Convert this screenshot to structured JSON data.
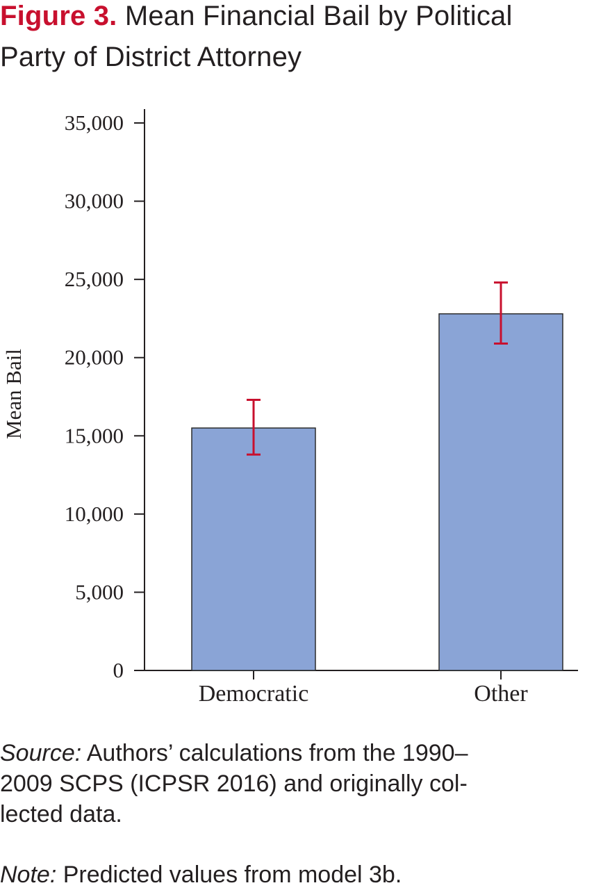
{
  "title": {
    "label": "Figure 3.",
    "text_line1": "Mean Financial Bail by Political",
    "text_line2": "Party of District Attorney"
  },
  "colors": {
    "accent": "#c8102e",
    "bar_fill": "#8aa4d6",
    "bar_stroke": "#2b2b2b",
    "error_bar": "#c8102e",
    "axis": "#231f20"
  },
  "chart_data": {
    "type": "bar",
    "title": "Mean Financial Bail by Political Party of District Attorney",
    "xlabel": "",
    "ylabel": "Mean Bail",
    "categories": [
      "Democratic",
      "Other"
    ],
    "values": [
      15500,
      22800
    ],
    "error_low": [
      13800,
      20900
    ],
    "error_high": [
      17300,
      24800
    ],
    "ylim": [
      0,
      35000
    ],
    "yticks": [
      0,
      5000,
      10000,
      15000,
      20000,
      25000,
      30000,
      35000
    ],
    "ytick_labels": [
      "0",
      "5,000",
      "10,000",
      "15,000",
      "20,000",
      "25,000",
      "30,000",
      "35,000"
    ],
    "grid": false,
    "legend": "none"
  },
  "caption": {
    "source_lead": "Source:",
    "source_line1": " Authors’ calculations from the 1990–",
    "source_line2": "2009 SCPS (ICPSR 2016) and originally col-",
    "source_line3": "lected data.",
    "note_lead": "Note:",
    "note_text": " Predicted values from model 3b."
  }
}
